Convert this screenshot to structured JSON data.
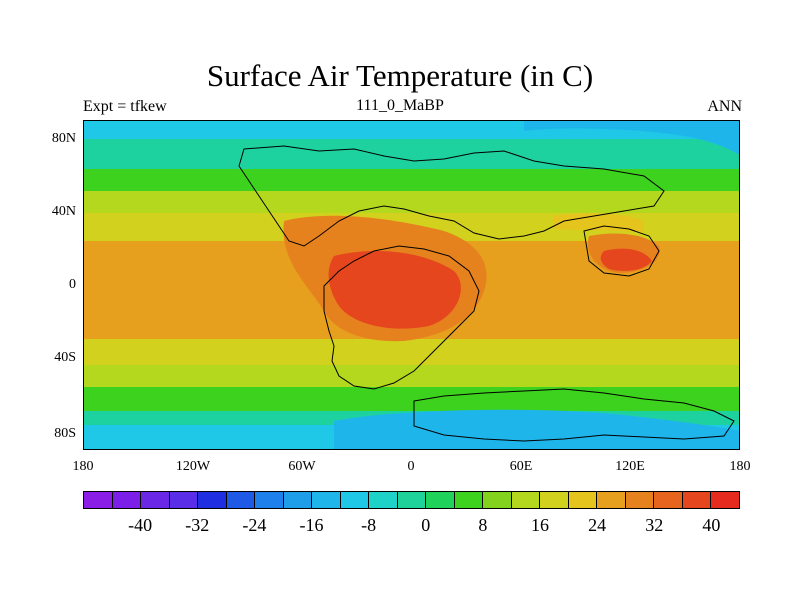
{
  "title": "Surface Air Temperature (in C)",
  "left_string": "Expt = tfkew",
  "center_string": "111_0_MaBP",
  "right_string": "ANN",
  "y_ticks": [
    "80N",
    "40N",
    "0",
    "40S",
    "80S"
  ],
  "x_ticks": [
    "180",
    "120W",
    "60W",
    "0",
    "60E",
    "120E",
    "180"
  ],
  "colorbar": {
    "colors": [
      "#8b1ee6",
      "#7a1ee8",
      "#6a28e6",
      "#5a2ee8",
      "#1e2ee0",
      "#1e5ae6",
      "#1e80ea",
      "#1e9ee8",
      "#1eb6ea",
      "#1ec8e6",
      "#1ed2c8",
      "#1ed29a",
      "#1ed25a",
      "#3cd21e",
      "#82d21e",
      "#b4d81e",
      "#d2d21e",
      "#e6c41e",
      "#e6a01e",
      "#e6821e",
      "#e6641e",
      "#e6461e",
      "#e62a1e"
    ],
    "labels": [
      "-40",
      "-32",
      "-24",
      "-16",
      "-8",
      "0",
      "8",
      "16",
      "24",
      "32",
      "40"
    ]
  },
  "field_colors": {
    "polar_cold": "#1ec8e6",
    "subpolar": "#1ed2a0",
    "midlat": "#3cd21e",
    "warm": "#b4d81e",
    "subtropic": "#d2d21e",
    "tropic": "#e6a01e",
    "hot": "#e6821e",
    "hottest": "#e6461e"
  }
}
